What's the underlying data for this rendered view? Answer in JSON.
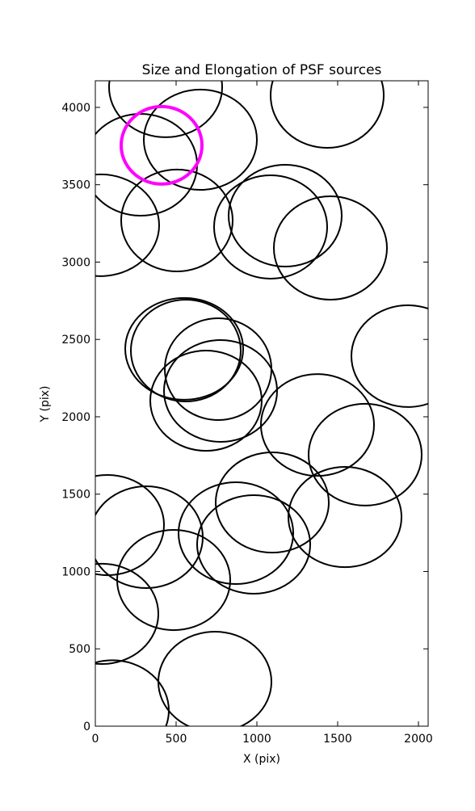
{
  "chart_data": {
    "type": "ellipse",
    "title": "Size and Elongation of PSF sources",
    "x_label": "X (pix)",
    "y_label": "Y (pix)",
    "xlim": [
      0,
      2060
    ],
    "ylim": [
      0,
      4172
    ],
    "xticks": [
      0,
      500,
      1000,
      1500,
      2000
    ],
    "yticks": [
      0,
      500,
      1000,
      1500,
      2000,
      2500,
      3000,
      3500,
      4000
    ],
    "series": [
      {
        "color": "#000000",
        "x": [
          435,
          650,
          280,
          1435,
          30,
          505,
          1175,
          1085,
          1455,
          550,
          560,
          1935,
          760,
          775,
          685,
          1375,
          1670,
          75,
          315,
          1095,
          870,
          980,
          1545,
          485,
          40,
          740,
          105
        ],
        "y": [
          4131,
          3791,
          3629,
          4078,
          3238,
          3269,
          3300,
          3227,
          3091,
          2439,
          2428,
          2392,
          2308,
          2167,
          2104,
          1947,
          1755,
          1300,
          1222,
          1446,
          1248,
          1175,
          1352,
          945,
          726,
          287,
          102
        ],
        "widths": [
          700,
          700,
          700,
          700,
          730,
          690,
          700,
          700,
          700,
          730,
          680,
          700,
          660,
          700,
          690,
          700,
          700,
          700,
          700,
          700,
          710,
          700,
          700,
          700,
          700,
          700,
          700
        ],
        "heights": [
          648,
          648,
          658,
          679,
          658,
          658,
          658,
          668,
          668,
          658,
          658,
          658,
          658,
          658,
          648,
          658,
          658,
          648,
          658,
          648,
          658,
          637,
          648,
          648,
          648,
          648,
          648
        ]
      },
      {
        "color": "#ff00ff",
        "x": [
          410
        ],
        "y": [
          3755
        ],
        "widths": [
          500
        ],
        "heights": [
          501
        ]
      }
    ]
  }
}
